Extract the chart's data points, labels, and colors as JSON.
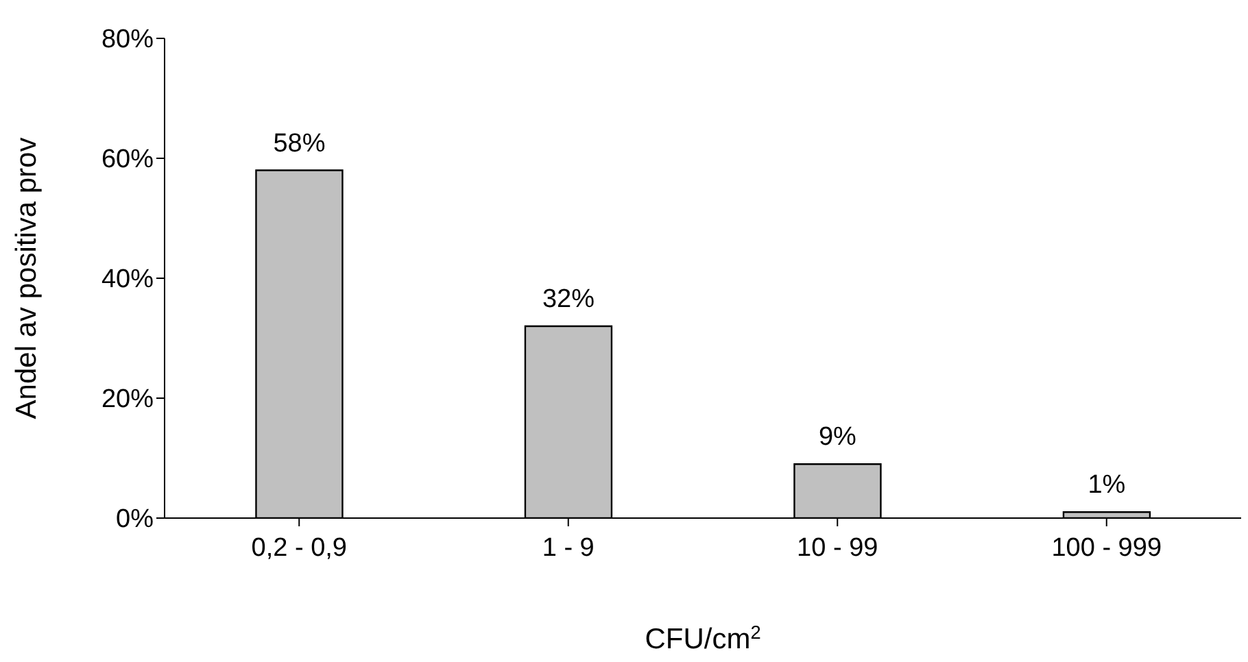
{
  "chart_data": {
    "type": "bar",
    "xlabel": "CFU/cm$^{2}$",
    "ylabel": "Andel av positiva prov",
    "categories": [
      "0,2 - 0,9",
      "1 - 9",
      "10 - 99",
      "100 - 999"
    ],
    "values": [
      58,
      32,
      9,
      1
    ],
    "value_labels": [
      "58%",
      "32%",
      "9%",
      "1%"
    ],
    "color": "#c0c0c0",
    "ylim": [
      0,
      80
    ],
    "yticks": [
      {
        "value": 0,
        "label": "0%"
      },
      {
        "value": 20,
        "label": "20%"
      },
      {
        "value": 40,
        "label": "40%"
      },
      {
        "value": 60,
        "label": "60%"
      },
      {
        "value": 80,
        "label": "80%"
      }
    ],
    "grid": false,
    "legend": false
  }
}
